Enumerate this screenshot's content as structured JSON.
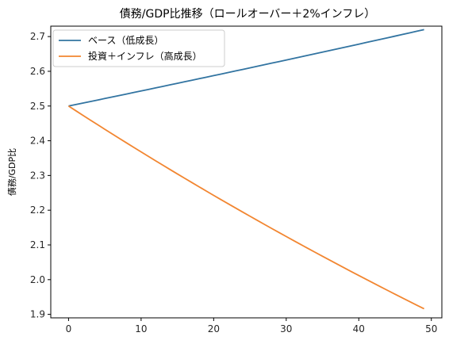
{
  "chart_data": {
    "type": "line",
    "title": "債務/GDP比推移（ロールオーバー＋2%インフレ）",
    "xlabel": "",
    "ylabel": "債務/GDP比",
    "xlim": [
      -2.45,
      51.45
    ],
    "ylim": [
      1.89,
      2.73
    ],
    "xticks": [
      0,
      10,
      20,
      30,
      40,
      50
    ],
    "yticks": [
      1.9,
      2.0,
      2.1,
      2.2,
      2.3,
      2.4,
      2.5,
      2.6,
      2.7
    ],
    "grid": false,
    "legend_position": "top-left",
    "series": [
      {
        "name": "ベース（低成長）",
        "color": "#3274a1",
        "x_start": 0,
        "x_end": 49,
        "y_start": 2.5,
        "y_end": 2.72,
        "shape": "slightly-concave-increasing"
      },
      {
        "name": "投資＋インフレ（高成長）",
        "color": "#f28631",
        "x_start": 0,
        "x_end": 49,
        "y_start": 2.5,
        "y_end": 1.916,
        "shape": "convex-decreasing"
      }
    ]
  }
}
